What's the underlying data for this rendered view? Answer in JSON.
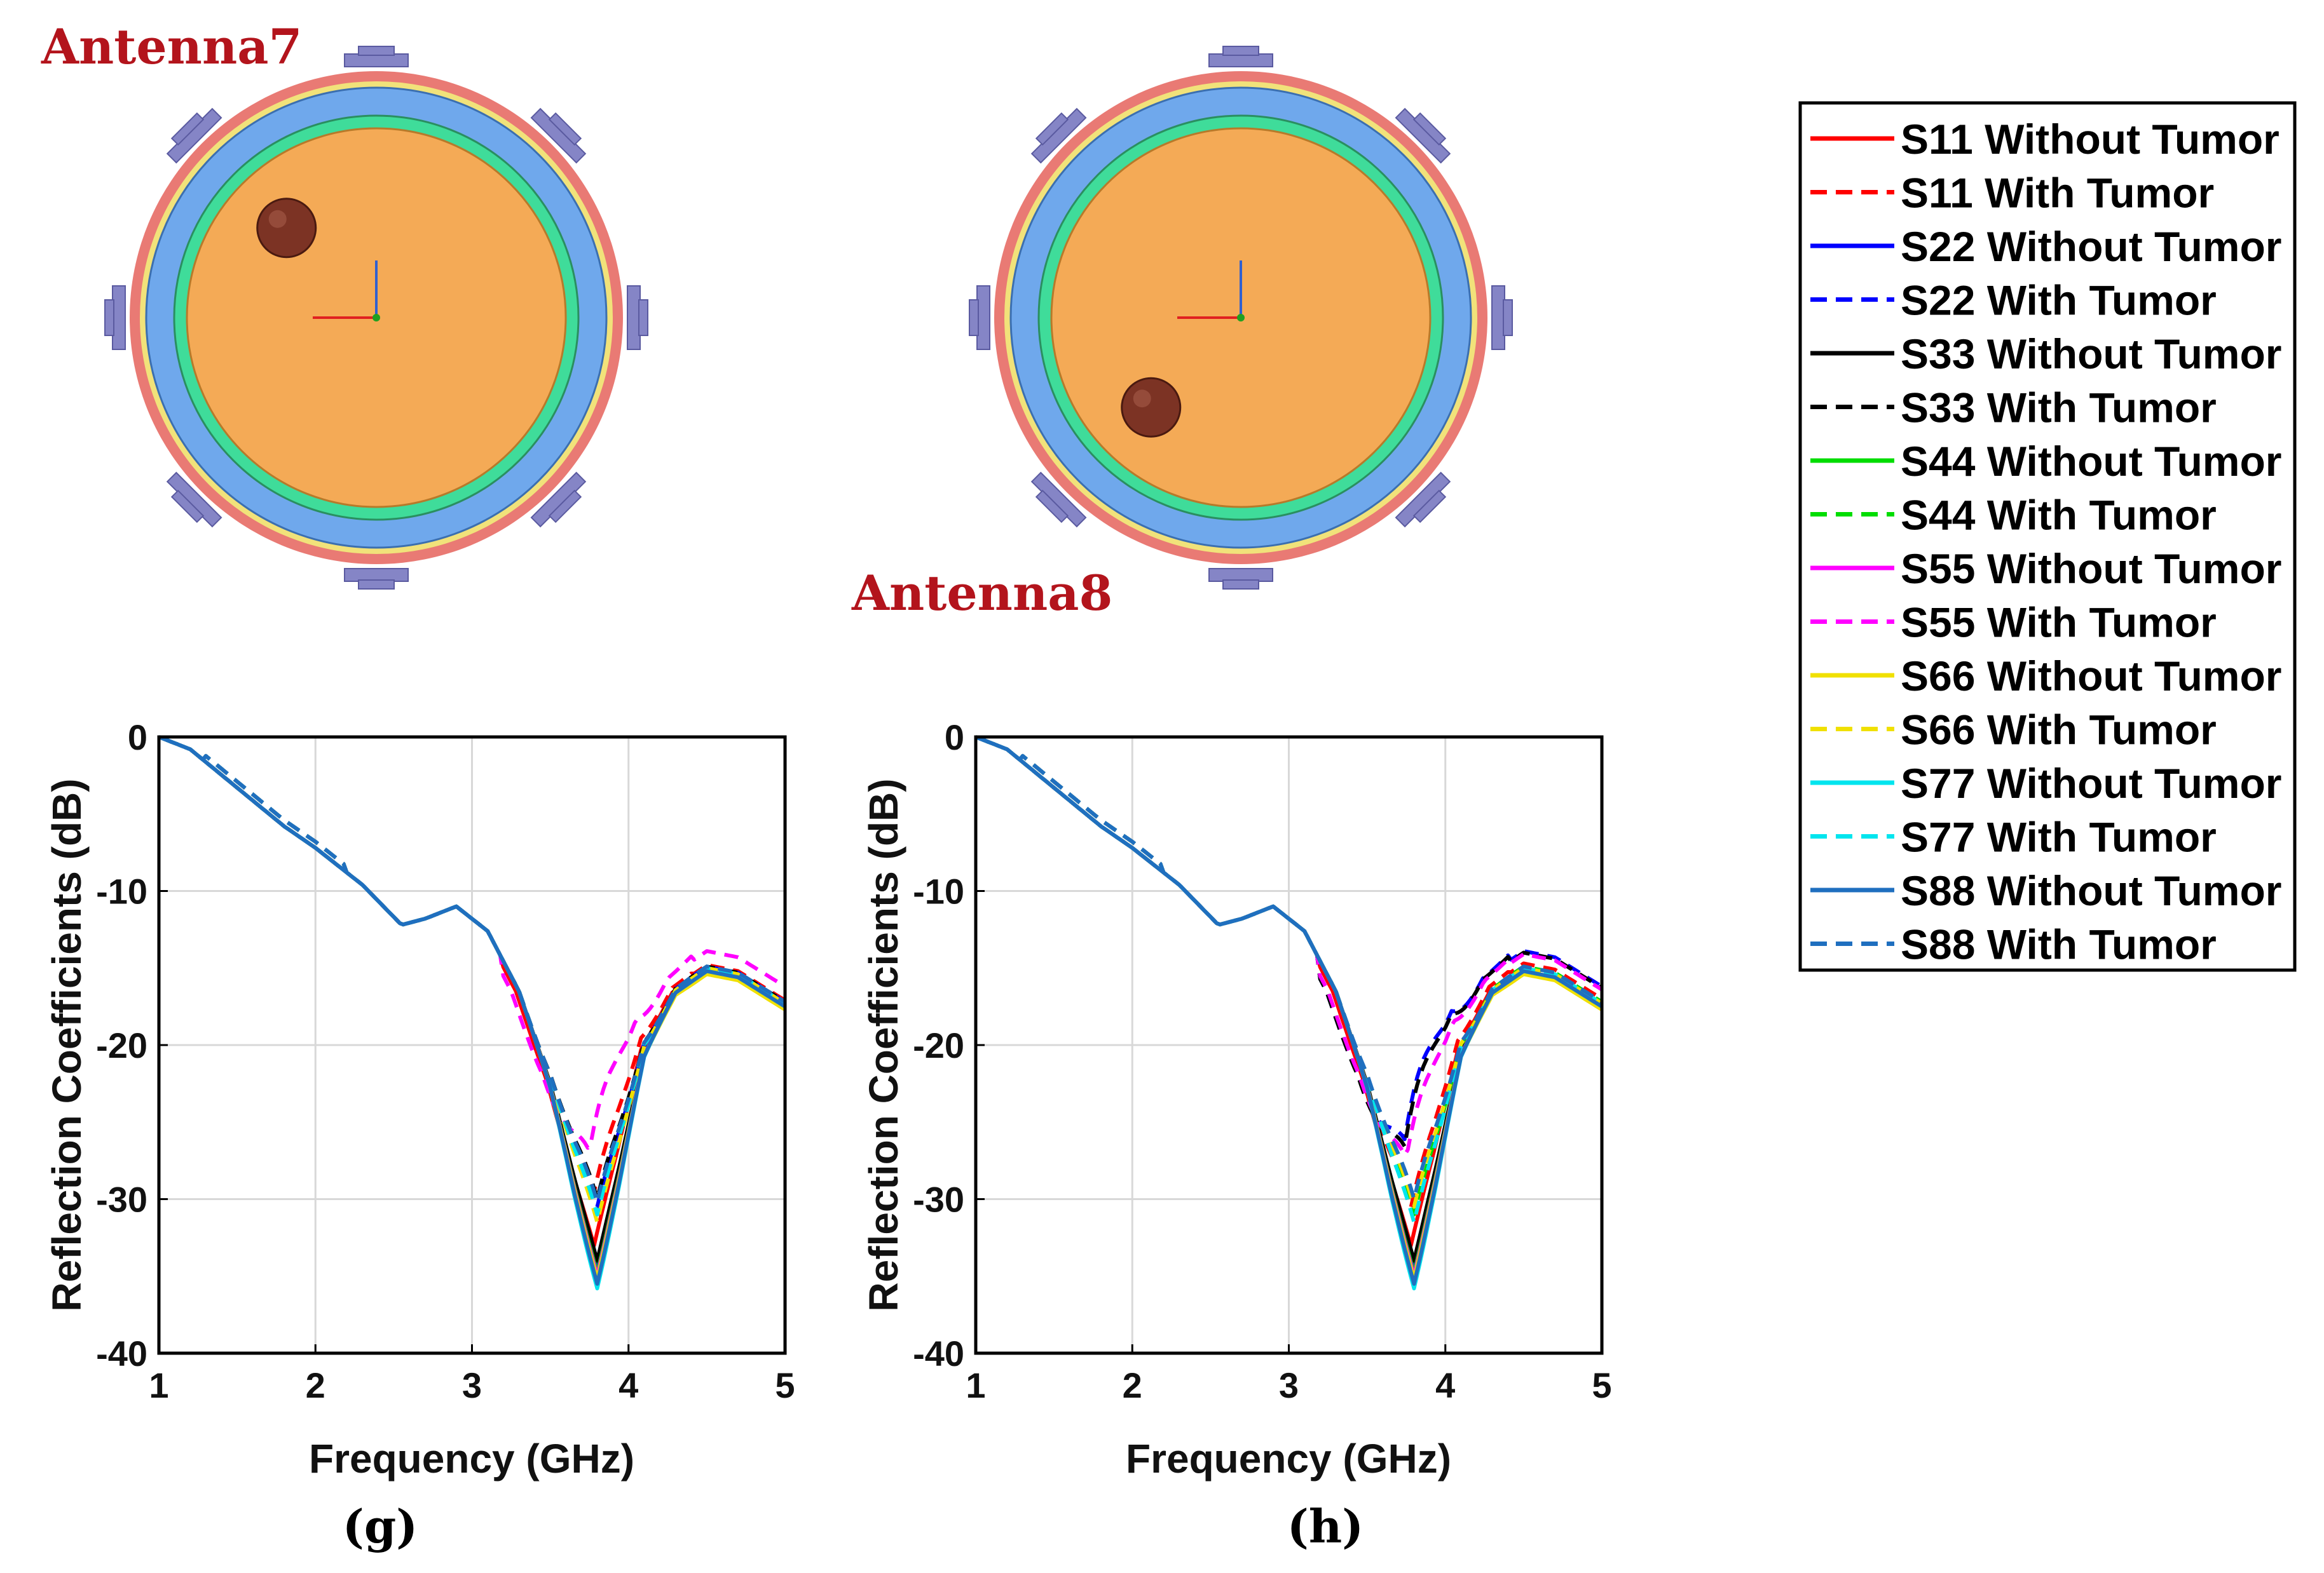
{
  "heads": [
    {
      "label": "Antenna7",
      "tumor_angle_deg": 135,
      "tumor_radius_frac": 0.62
    },
    {
      "label": "Antenna8",
      "tumor_angle_deg": 225,
      "tumor_radius_frac": 0.62
    }
  ],
  "colors": {
    "skin": "#e97a74",
    "fat": "#6fa8ec",
    "gland": "#3fdc9a",
    "tissue": "#f4aa56",
    "tumor": "#7c3324",
    "antenna": "#8585c6",
    "label": "#b3141c"
  },
  "chart_data": [
    {
      "type": "line",
      "panel": "(g)",
      "xlabel": "Frequency (GHz)",
      "ylabel": "Reflection Coefficients (dB)",
      "xlim": [
        1,
        5
      ],
      "ylim": [
        -40,
        0
      ],
      "xticks": [
        1,
        2,
        3,
        4,
        5
      ],
      "yticks": [
        0,
        -10,
        -20,
        -30,
        -40
      ],
      "grid": true,
      "base_curve": {
        "x": [
          1,
          1.2,
          1.5,
          1.8,
          2.0,
          2.3,
          2.55,
          2.7,
          2.9,
          3.1,
          3.3,
          3.5,
          3.65,
          3.8,
          3.95,
          4.1,
          4.3,
          4.5,
          4.7,
          5.0
        ],
        "y": [
          0,
          -0.8,
          -3.3,
          -5.8,
          -7.2,
          -9.6,
          -12.2,
          -11.8,
          -11.0,
          -12.6,
          -16.5,
          -22.5,
          -28.5,
          -34.0,
          -27.5,
          -20.5,
          -16.6,
          -15.2,
          -15.6,
          -17.5
        ]
      },
      "series": [
        {
          "name": "S11 Without Tumor",
          "color": "#ff0000",
          "dashed": false,
          "min": -33.0,
          "dip_shift": -0.02,
          "tail": 0.0
        },
        {
          "name": "S11 With Tumor",
          "color": "#ff0000",
          "dashed": true,
          "min": -29.5,
          "dip_shift": -0.02,
          "tail": 0.4
        },
        {
          "name": "S22 Without Tumor",
          "color": "#0000ff",
          "dashed": false,
          "min": -34.5,
          "dip_shift": 0.0,
          "tail": 0.0
        },
        {
          "name": "S22 With Tumor",
          "color": "#0000ff",
          "dashed": true,
          "min": -30.5,
          "dip_shift": 0.0,
          "tail": 0.3
        },
        {
          "name": "S33 Without Tumor",
          "color": "#000000",
          "dashed": false,
          "min": -34.0,
          "dip_shift": 0.0,
          "tail": 0.0
        },
        {
          "name": "S33 With Tumor",
          "color": "#000000",
          "dashed": true,
          "min": -30.0,
          "dip_shift": 0.0,
          "tail": 0.3
        },
        {
          "name": "S44 Without Tumor",
          "color": "#00dd00",
          "dashed": false,
          "min": -34.8,
          "dip_shift": 0.0,
          "tail": 0.0
        },
        {
          "name": "S44 With Tumor",
          "color": "#00dd00",
          "dashed": true,
          "min": -31.0,
          "dip_shift": 0.0,
          "tail": 0.2
        },
        {
          "name": "S55 Without Tumor",
          "color": "#ff00ff",
          "dashed": false,
          "min": -35.0,
          "dip_shift": 0.0,
          "tail": 0.0
        },
        {
          "name": "S55 With Tumor",
          "color": "#ff00ff",
          "dashed": true,
          "min": -26.5,
          "dip_shift": -0.05,
          "tail": 1.3
        },
        {
          "name": "S66 Without Tumor",
          "color": "#f0e000",
          "dashed": false,
          "min": -35.2,
          "dip_shift": 0.0,
          "tail": -0.2
        },
        {
          "name": "S66 With Tumor",
          "color": "#f0e000",
          "dashed": true,
          "min": -31.5,
          "dip_shift": 0.0,
          "tail": 0.2
        },
        {
          "name": "S77 Without Tumor",
          "color": "#00e5ee",
          "dashed": false,
          "min": -35.8,
          "dip_shift": 0.0,
          "tail": 0.0
        },
        {
          "name": "S77 With Tumor",
          "color": "#00e5ee",
          "dashed": true,
          "min": -31.0,
          "dip_shift": 0.0,
          "tail": 0.2
        },
        {
          "name": "S88 Without Tumor",
          "color": "#1f6fbf",
          "dashed": false,
          "min": -35.5,
          "dip_shift": 0.0,
          "tail": 0.0
        },
        {
          "name": "S88 With Tumor",
          "color": "#1f6fbf",
          "dashed": true,
          "min": -30.2,
          "dip_shift": 0.0,
          "tail": 0.3
        }
      ]
    },
    {
      "type": "line",
      "panel": "(h)",
      "xlabel": "Frequency (GHz)",
      "ylabel": "Reflection Coefficients (dB)",
      "xlim": [
        1,
        5
      ],
      "ylim": [
        -40,
        0
      ],
      "xticks": [
        1,
        2,
        3,
        4,
        5
      ],
      "yticks": [
        0,
        -10,
        -20,
        -30,
        -40
      ],
      "grid": true,
      "base_curve": {
        "x": [
          1,
          1.2,
          1.5,
          1.8,
          2.0,
          2.3,
          2.55,
          2.7,
          2.9,
          3.1,
          3.3,
          3.5,
          3.65,
          3.8,
          3.95,
          4.1,
          4.3,
          4.5,
          4.7,
          5.0
        ],
        "y": [
          0,
          -0.8,
          -3.3,
          -5.8,
          -7.2,
          -9.6,
          -12.2,
          -11.8,
          -11.0,
          -12.6,
          -16.5,
          -22.5,
          -28.5,
          -34.0,
          -27.5,
          -20.5,
          -16.6,
          -15.2,
          -15.6,
          -17.5
        ]
      },
      "series": [
        {
          "name": "S11 Without Tumor",
          "color": "#ff0000",
          "dashed": false,
          "min": -33.0,
          "dip_shift": -0.02,
          "tail": 0.0
        },
        {
          "name": "S11 With Tumor",
          "color": "#ff0000",
          "dashed": true,
          "min": -30.5,
          "dip_shift": -0.02,
          "tail": 0.5
        },
        {
          "name": "S22 Without Tumor",
          "color": "#0000ff",
          "dashed": false,
          "min": -34.5,
          "dip_shift": 0.0,
          "tail": 0.0
        },
        {
          "name": "S22 With Tumor",
          "color": "#0000ff",
          "dashed": true,
          "min": -25.5,
          "dip_shift": -0.06,
          "tail": 1.3
        },
        {
          "name": "S33 Without Tumor",
          "color": "#000000",
          "dashed": false,
          "min": -34.0,
          "dip_shift": 0.0,
          "tail": 0.0
        },
        {
          "name": "S33 With Tumor",
          "color": "#000000",
          "dashed": true,
          "min": -26.0,
          "dip_shift": -0.06,
          "tail": 1.2
        },
        {
          "name": "S44 Without Tumor",
          "color": "#00dd00",
          "dashed": false,
          "min": -34.8,
          "dip_shift": 0.0,
          "tail": 0.0
        },
        {
          "name": "S44 With Tumor",
          "color": "#00dd00",
          "dashed": true,
          "min": -31.0,
          "dip_shift": 0.0,
          "tail": 0.3
        },
        {
          "name": "S55 Without Tumor",
          "color": "#ff00ff",
          "dashed": false,
          "min": -35.0,
          "dip_shift": 0.0,
          "tail": 0.0
        },
        {
          "name": "S55 With Tumor",
          "color": "#ff00ff",
          "dashed": true,
          "min": -27.0,
          "dip_shift": -0.05,
          "tail": 1.1
        },
        {
          "name": "S66 Without Tumor",
          "color": "#f0e000",
          "dashed": false,
          "min": -35.2,
          "dip_shift": 0.0,
          "tail": -0.2
        },
        {
          "name": "S66 With Tumor",
          "color": "#f0e000",
          "dashed": true,
          "min": -30.5,
          "dip_shift": 0.0,
          "tail": 0.2
        },
        {
          "name": "S77 Without Tumor",
          "color": "#00e5ee",
          "dashed": false,
          "min": -35.8,
          "dip_shift": 0.0,
          "tail": 0.0
        },
        {
          "name": "S77 With Tumor",
          "color": "#00e5ee",
          "dashed": true,
          "min": -31.5,
          "dip_shift": 0.0,
          "tail": 0.2
        },
        {
          "name": "S88 Without Tumor",
          "color": "#1f6fbf",
          "dashed": false,
          "min": -35.5,
          "dip_shift": 0.0,
          "tail": 0.0
        },
        {
          "name": "S88 With Tumor",
          "color": "#1f6fbf",
          "dashed": true,
          "min": -30.0,
          "dip_shift": 0.0,
          "tail": 0.3
        }
      ]
    }
  ],
  "legend": {
    "items": [
      {
        "label": "S11 Without Tumor",
        "color": "#ff0000",
        "dashed": false
      },
      {
        "label": "S11 With Tumor",
        "color": "#ff0000",
        "dashed": true
      },
      {
        "label": "S22 Without Tumor",
        "color": "#0000ff",
        "dashed": false
      },
      {
        "label": "S22 With Tumor",
        "color": "#0000ff",
        "dashed": true
      },
      {
        "label": "S33 Without Tumor",
        "color": "#000000",
        "dashed": false
      },
      {
        "label": "S33 With Tumor",
        "color": "#000000",
        "dashed": true
      },
      {
        "label": "S44 Without Tumor",
        "color": "#00dd00",
        "dashed": false
      },
      {
        "label": "S44 With Tumor",
        "color": "#00dd00",
        "dashed": true
      },
      {
        "label": "S55 Without Tumor",
        "color": "#ff00ff",
        "dashed": false
      },
      {
        "label": "S55 With Tumor",
        "color": "#ff00ff",
        "dashed": true
      },
      {
        "label": "S66 Without Tumor",
        "color": "#f0e000",
        "dashed": false
      },
      {
        "label": "S66 With Tumor",
        "color": "#f0e000",
        "dashed": true
      },
      {
        "label": "S77 Without Tumor",
        "color": "#00e5ee",
        "dashed": false
      },
      {
        "label": "S77 With Tumor",
        "color": "#00e5ee",
        "dashed": true
      },
      {
        "label": "S88 Without Tumor",
        "color": "#1f6fbf",
        "dashed": false
      },
      {
        "label": "S88 With Tumor",
        "color": "#1f6fbf",
        "dashed": true
      }
    ]
  }
}
